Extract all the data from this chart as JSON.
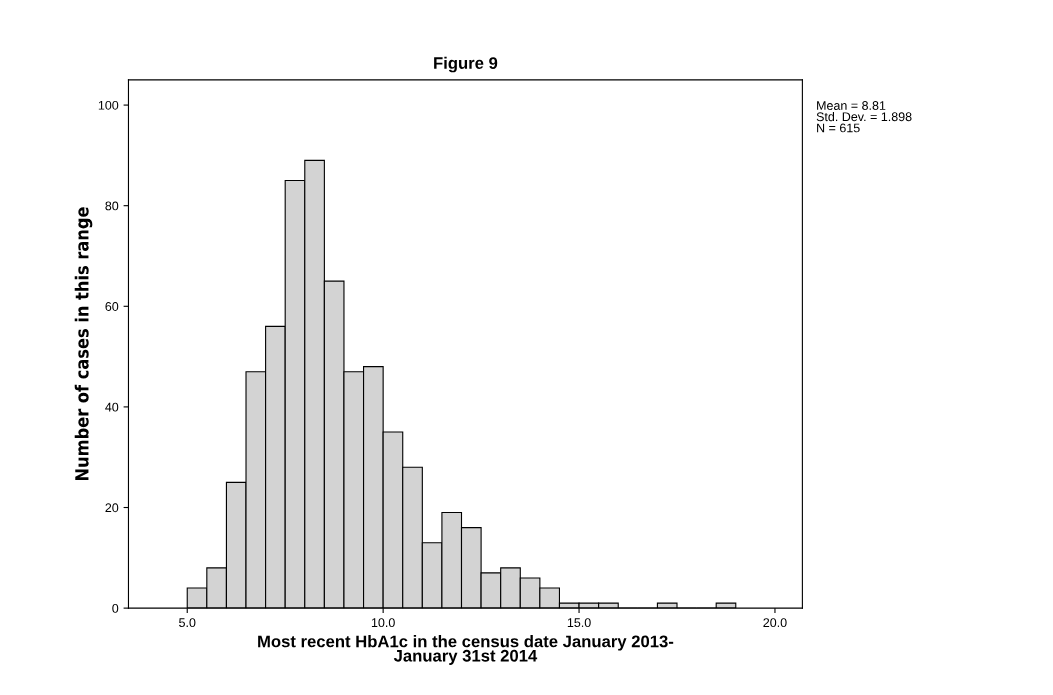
{
  "chart_data": {
    "type": "histogram",
    "title": "Figure 9",
    "xlabel": "Most recent HbA1c in the census date January 2013-\nJanuary 31st 2014",
    "ylabel": "Number of cases in this range",
    "bins": [
      5.0,
      5.5,
      6.0,
      6.5,
      7.0,
      7.5,
      8.0,
      8.5,
      9.0,
      9.5,
      10.0,
      10.5,
      11.0,
      11.5,
      12.0,
      12.5,
      13.0,
      13.5,
      14.0,
      14.5,
      15.0,
      15.5,
      16.0,
      16.5,
      17.0,
      17.5,
      18.0,
      18.5,
      19.0
    ],
    "values": [
      4,
      8,
      25,
      47,
      56,
      85,
      89,
      65,
      47,
      48,
      35,
      28,
      13,
      19,
      16,
      7,
      8,
      6,
      4,
      1,
      1,
      1,
      0,
      0,
      1,
      0,
      0,
      1
    ],
    "color": "#d3d3d3",
    "xlim": [
      3.5,
      20.7
    ],
    "ylim": [
      0,
      105
    ],
    "xticks": [
      {
        "value": 5,
        "label": "5.0"
      },
      {
        "value": 10,
        "label": "10.0"
      },
      {
        "value": 15,
        "label": "15.0"
      },
      {
        "value": 20,
        "label": "20.0"
      }
    ],
    "yticks": [
      0,
      20,
      40,
      60,
      80,
      100
    ],
    "grid": false,
    "legend": false,
    "annotations": [
      "Mean = 8.81\nStd. Dev. = 1.898\nN = 615"
    ]
  }
}
